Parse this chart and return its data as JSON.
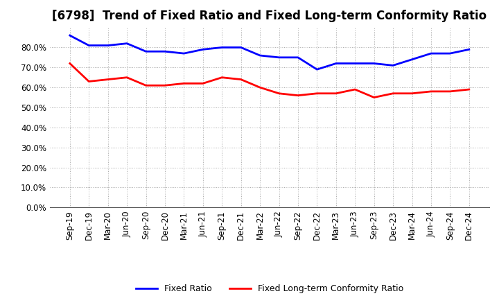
{
  "title": "[6798]  Trend of Fixed Ratio and Fixed Long-term Conformity Ratio",
  "labels": [
    "Sep-19",
    "Dec-19",
    "Mar-20",
    "Jun-20",
    "Sep-20",
    "Dec-20",
    "Mar-21",
    "Jun-21",
    "Sep-21",
    "Dec-21",
    "Mar-22",
    "Jun-22",
    "Sep-22",
    "Dec-22",
    "Mar-23",
    "Jun-23",
    "Sep-23",
    "Dec-23",
    "Mar-24",
    "Jun-24",
    "Sep-24",
    "Dec-24"
  ],
  "fixed_ratio": [
    86,
    81,
    81,
    82,
    78,
    78,
    77,
    79,
    80,
    80,
    76,
    75,
    75,
    69,
    72,
    72,
    72,
    71,
    74,
    77,
    77,
    79
  ],
  "fixed_lt_ratio": [
    72,
    63,
    64,
    65,
    61,
    61,
    62,
    62,
    65,
    64,
    60,
    57,
    56,
    57,
    57,
    59,
    55,
    57,
    57,
    58,
    58,
    59
  ],
  "fixed_ratio_color": "#0000FF",
  "fixed_lt_ratio_color": "#FF0000",
  "ylim": [
    0,
    90
  ],
  "yticks": [
    0,
    10,
    20,
    30,
    40,
    50,
    60,
    70,
    80
  ],
  "background_color": "#FFFFFF",
  "grid_color": "#AAAAAA",
  "title_fontsize": 12,
  "axis_fontsize": 8.5,
  "legend_labels": [
    "Fixed Ratio",
    "Fixed Long-term Conformity Ratio"
  ]
}
